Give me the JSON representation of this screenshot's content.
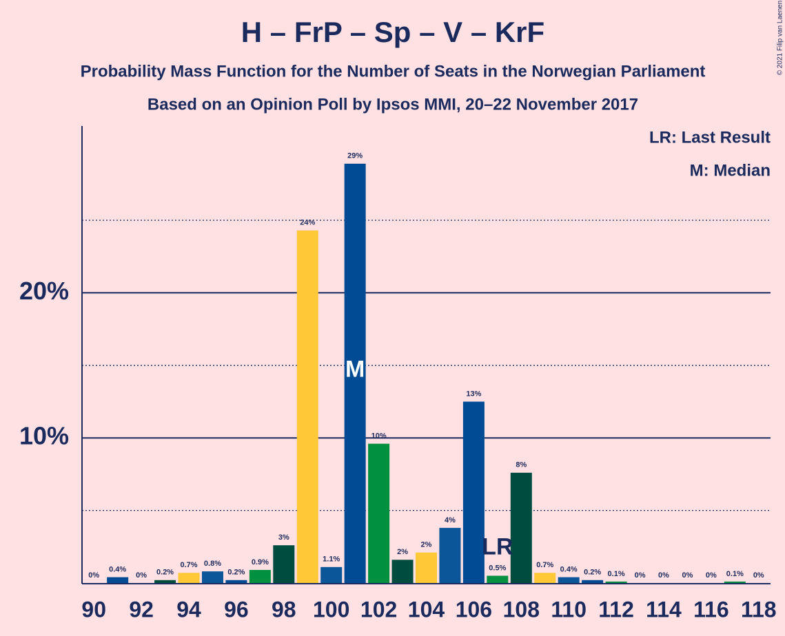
{
  "chart_data": {
    "type": "bar",
    "title": "H – FrP – Sp – V – KrF",
    "subtitle": "Probability Mass Function for the Number of Seats in the Norwegian Parliament",
    "subtitle2": "Based on an Opinion Poll by Ipsos MMI, 20–22 November 2017",
    "copyright": "© 2021 Filip van Laenen",
    "legend": [
      "LR: Last Result",
      "M: Median"
    ],
    "x": [
      90,
      91,
      92,
      93,
      94,
      95,
      96,
      97,
      98,
      99,
      100,
      101,
      102,
      103,
      104,
      105,
      106,
      107,
      108,
      109,
      110,
      111,
      112,
      113,
      114,
      115,
      116,
      117,
      118
    ],
    "values": [
      0,
      0.4,
      0,
      0.2,
      0.7,
      0.8,
      0.2,
      0.9,
      2.6,
      24.3,
      1.1,
      28.9,
      9.6,
      1.6,
      2.1,
      3.8,
      12.5,
      0.5,
      7.6,
      0.7,
      0.4,
      0.2,
      0.1,
      0,
      0,
      0,
      0,
      0.1,
      0
    ],
    "value_labels": [
      "0%",
      "0.4%",
      "0%",
      "0.2%",
      "0.7%",
      "0.8%",
      "0.2%",
      "0.9%",
      "3%",
      "24%",
      "1.1%",
      "29%",
      "10%",
      "2%",
      "2%",
      "4%",
      "13%",
      "0.5%",
      "8%",
      "0.7%",
      "0.4%",
      "0.2%",
      "0.1%",
      "0%",
      "0%",
      "0%",
      "0%",
      "0.1%",
      "0%"
    ],
    "colors": [
      "#0b5599",
      "#004b93",
      "#009040",
      "#004d40",
      "#ffc837",
      "#0b5599",
      "#004b93",
      "#009040",
      "#004d40",
      "#ffc837",
      "#0b5599",
      "#004b93",
      "#009040",
      "#004d40",
      "#ffc837",
      "#0b5599",
      "#004b93",
      "#009040",
      "#004d40",
      "#ffc837",
      "#0b5599",
      "#004b93",
      "#009040",
      "#004d40",
      "#ffc837",
      "#0b5599",
      "#004b93",
      "#009040",
      "#004d40"
    ],
    "annotations": [
      {
        "text": "M",
        "x": 101
      },
      {
        "text": "LR",
        "x": 107
      }
    ],
    "xlim": [
      89.5,
      118.5
    ],
    "xticks": [
      90,
      92,
      94,
      96,
      98,
      100,
      102,
      104,
      106,
      108,
      110,
      112,
      114,
      116,
      118
    ],
    "ylim": [
      0,
      31.5
    ],
    "yticks": [
      {
        "value": 10,
        "label": "10%"
      },
      {
        "value": 20,
        "label": "20%"
      }
    ],
    "minor_yticks": [
      5,
      15,
      25
    ],
    "grid": true
  }
}
